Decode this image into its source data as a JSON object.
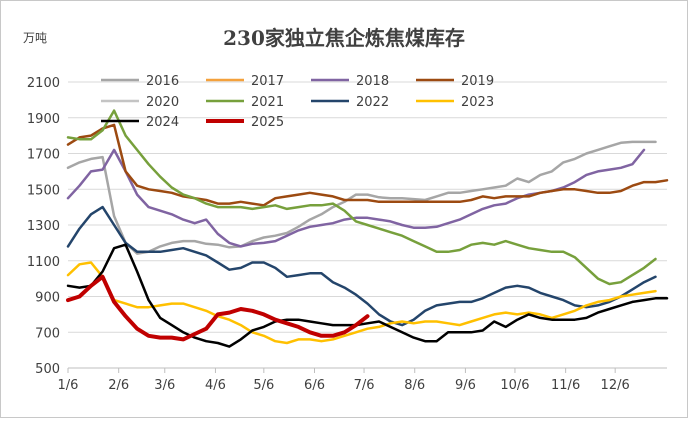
{
  "chart_data": {
    "type": "line",
    "title": "230家独立焦企炼焦煤库存",
    "unit_label": "万吨",
    "xlabel": "",
    "ylabel": "",
    "ylim": [
      500,
      2100
    ],
    "yticks": [
      500,
      700,
      900,
      1100,
      1300,
      1500,
      1700,
      1900,
      2100
    ],
    "xlim": [
      1,
      53
    ],
    "xticks": [
      {
        "label": "1/6",
        "week": 1
      },
      {
        "label": "2/6",
        "week": 5.4
      },
      {
        "label": "3/6",
        "week": 9.4
      },
      {
        "label": "4/6",
        "week": 13.8
      },
      {
        "label": "5/6",
        "week": 18
      },
      {
        "label": "6/6",
        "week": 22.4
      },
      {
        "label": "7/6",
        "week": 26.7
      },
      {
        "label": "8/6",
        "week": 31.1
      },
      {
        "label": "9/6",
        "week": 35.5
      },
      {
        "label": "10/6",
        "week": 39.8
      },
      {
        "label": "11/6",
        "week": 44.2
      },
      {
        "label": "12/6",
        "week": 48.5
      }
    ],
    "grid": "horizontal",
    "legend": "top",
    "series": [
      {
        "name": "2016",
        "color": "#a6a6a6",
        "width": 2.5,
        "values": [
          1620,
          1650,
          1670,
          1680,
          1350,
          1200,
          1140,
          1150,
          1180,
          1200,
          1210,
          1210,
          1195,
          1190,
          1175,
          1180,
          1210,
          1230,
          1240,
          1255,
          1290,
          1330,
          1360,
          1400,
          1430,
          1470,
          1470,
          1455,
          1450,
          1450,
          1445,
          1440,
          1460,
          1480,
          1480,
          1490,
          1500,
          1510,
          1520,
          1560,
          1540,
          1580,
          1600,
          1650,
          1670,
          1700,
          1720,
          1740,
          1760,
          1765,
          1765,
          1765
        ]
      },
      {
        "name": "2017",
        "color": "#f4a13c",
        "width": 2.5,
        "values": []
      },
      {
        "name": "2018",
        "color": "#8064a2",
        "width": 2.5,
        "values": [
          1450,
          1520,
          1600,
          1610,
          1720,
          1600,
          1470,
          1400,
          1380,
          1360,
          1330,
          1310,
          1330,
          1250,
          1200,
          1180,
          1195,
          1200,
          1210,
          1240,
          1270,
          1290,
          1300,
          1310,
          1330,
          1340,
          1340,
          1330,
          1320,
          1300,
          1285,
          1285,
          1290,
          1310,
          1330,
          1360,
          1390,
          1410,
          1420,
          1450,
          1470,
          1480,
          1490,
          1510,
          1540,
          1580,
          1600,
          1610,
          1620,
          1640,
          1720
        ]
      },
      {
        "name": "2019",
        "color": "#9c4a11",
        "width": 2.5,
        "values": [
          1750,
          1790,
          1800,
          1840,
          1860,
          1600,
          1520,
          1500,
          1490,
          1480,
          1460,
          1450,
          1440,
          1420,
          1420,
          1430,
          1420,
          1410,
          1450,
          1460,
          1470,
          1480,
          1470,
          1460,
          1440,
          1440,
          1440,
          1430,
          1430,
          1430,
          1430,
          1430,
          1430,
          1430,
          1430,
          1440,
          1460,
          1450,
          1460,
          1460,
          1460,
          1480,
          1490,
          1500,
          1500,
          1490,
          1480,
          1480,
          1490,
          1520,
          1540,
          1540,
          1550
        ]
      },
      {
        "name": "2020",
        "color": "#c4c4c4",
        "width": 2.5,
        "values": []
      },
      {
        "name": "2021",
        "color": "#77a03c",
        "width": 2.5,
        "values": [
          1790,
          1780,
          1780,
          1830,
          1940,
          1800,
          1720,
          1640,
          1570,
          1510,
          1470,
          1450,
          1420,
          1400,
          1400,
          1400,
          1390,
          1400,
          1410,
          1390,
          1400,
          1410,
          1410,
          1420,
          1380,
          1320,
          1300,
          1280,
          1260,
          1240,
          1210,
          1180,
          1150,
          1150,
          1160,
          1190,
          1200,
          1190,
          1210,
          1190,
          1170,
          1160,
          1150,
          1150,
          1120,
          1060,
          1000,
          970,
          980,
          1020,
          1060,
          1110
        ]
      },
      {
        "name": "2022",
        "color": "#24456b",
        "width": 2.5,
        "values": [
          1180,
          1280,
          1360,
          1400,
          1300,
          1200,
          1150,
          1150,
          1150,
          1160,
          1170,
          1150,
          1130,
          1090,
          1050,
          1060,
          1090,
          1090,
          1060,
          1010,
          1020,
          1030,
          1030,
          980,
          950,
          910,
          860,
          800,
          760,
          740,
          770,
          820,
          850,
          860,
          870,
          870,
          890,
          920,
          950,
          960,
          950,
          920,
          900,
          880,
          850,
          840,
          850,
          870,
          900,
          940,
          980,
          1010
        ]
      },
      {
        "name": "2023",
        "color": "#ffc000",
        "width": 2.5,
        "values": [
          1020,
          1080,
          1090,
          1010,
          880,
          860,
          840,
          840,
          850,
          860,
          860,
          840,
          820,
          790,
          770,
          740,
          700,
          680,
          650,
          640,
          660,
          660,
          650,
          660,
          680,
          700,
          720,
          730,
          750,
          760,
          750,
          760,
          760,
          750,
          740,
          760,
          780,
          800,
          810,
          800,
          810,
          800,
          780,
          800,
          820,
          850,
          870,
          880,
          900,
          910,
          920,
          930
        ]
      },
      {
        "name": "2024",
        "color": "#000000",
        "width": 2.5,
        "values": [
          960,
          950,
          960,
          1040,
          1170,
          1190,
          1040,
          880,
          780,
          740,
          700,
          670,
          650,
          640,
          620,
          660,
          710,
          730,
          760,
          770,
          770,
          760,
          750,
          740,
          740,
          740,
          750,
          760,
          730,
          700,
          670,
          650,
          650,
          700,
          700,
          700,
          710,
          760,
          730,
          770,
          800,
          780,
          770,
          770,
          770,
          780,
          810,
          830,
          850,
          870,
          880,
          890,
          890
        ]
      },
      {
        "name": "2025",
        "color": "#c00000",
        "width": 4,
        "values": [
          880,
          900,
          960,
          1010,
          870,
          790,
          720,
          680,
          670,
          670,
          660,
          690,
          720,
          800,
          810,
          830,
          820,
          800,
          770,
          750,
          730,
          700,
          680,
          680,
          700,
          740,
          790
        ]
      }
    ]
  }
}
